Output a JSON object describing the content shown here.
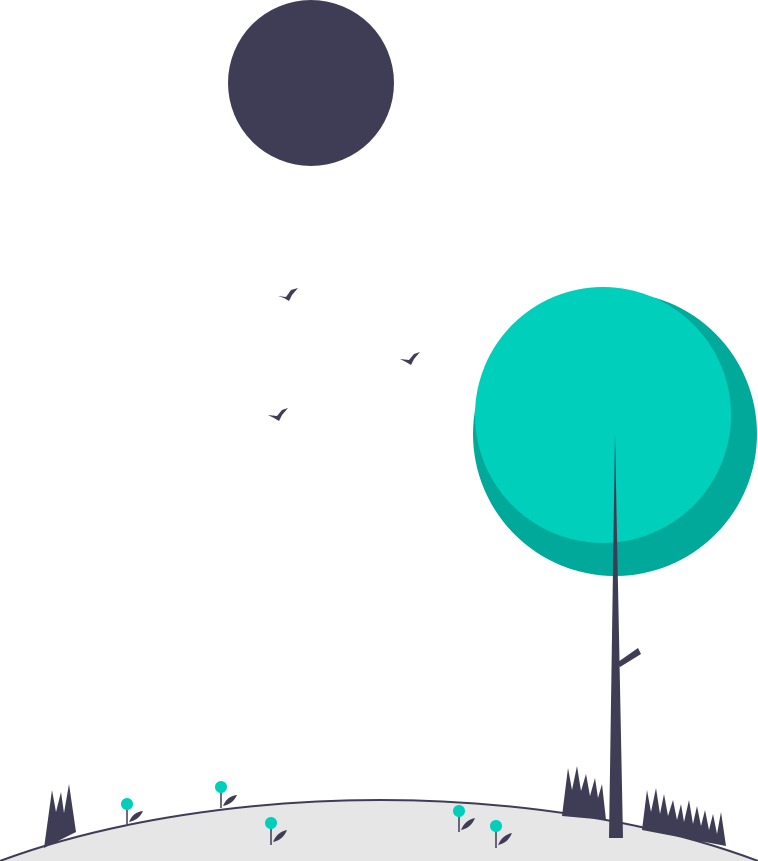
{
  "scene": {
    "background": "#ffffff",
    "colors": {
      "dark": "#3f3d56",
      "teal": "#00cfbc",
      "teal_shadow": "#00a99a",
      "ground": "#e6e6e6"
    },
    "elements": {
      "sun": "circle",
      "birds": "bird-icon",
      "tree": "round-tree",
      "grass": "spiky-grass",
      "flowers": "small-teal-flowers"
    }
  }
}
